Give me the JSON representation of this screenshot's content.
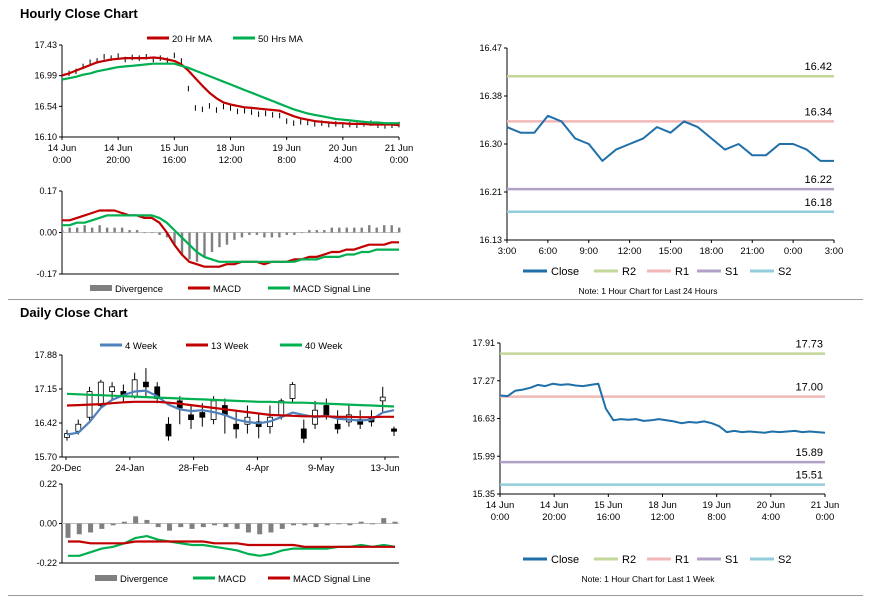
{
  "colors": {
    "red": "#c00000",
    "green": "#00b050",
    "blue": "#4f81bd",
    "close": "#1f6fa8",
    "r2": "#c4d79b",
    "r1": "#f2b8b8",
    "s1": "#b1a0c7",
    "s2": "#92cddc",
    "divergence": "#808080",
    "candle": "#000000",
    "grid": "#d0d0d0"
  },
  "sections": {
    "hourly": "Hourly Close Chart",
    "daily": "Daily Close Chart"
  },
  "chart_data": [
    {
      "id": "hourly-price",
      "type": "line",
      "title": "Hourly Close Chart",
      "legend": [
        "20 Hr MA",
        "50 Hrs MA"
      ],
      "yticks": [
        "17.43",
        "16.99",
        "16.54",
        "16.10"
      ],
      "ylim": [
        16.1,
        17.43
      ],
      "xticks": [
        [
          "14 Jun",
          "0:00"
        ],
        [
          "14 Jun",
          "20:00"
        ],
        [
          "15 Jun",
          "16:00"
        ],
        [
          "18 Jun",
          "12:00"
        ],
        [
          "19 Jun",
          "8:00"
        ],
        [
          "20 Jun",
          "4:00"
        ],
        [
          "21 Jun",
          "0:00"
        ]
      ],
      "close": [
        16.98,
        17.02,
        17.05,
        17.12,
        17.18,
        17.2,
        17.26,
        17.24,
        17.27,
        17.22,
        17.25,
        17.24,
        17.26,
        17.22,
        17.24,
        17.21,
        17.28,
        17.2,
        16.8,
        16.52,
        16.5,
        16.55,
        16.49,
        16.54,
        16.52,
        16.47,
        16.48,
        16.46,
        16.43,
        16.44,
        16.42,
        16.41,
        16.33,
        16.3,
        16.32,
        16.31,
        16.29,
        16.3,
        16.28,
        16.29,
        16.27,
        16.28,
        16.27,
        16.29,
        16.3,
        16.27,
        16.26,
        16.27,
        16.28
      ],
      "series": [
        {
          "name": "20 Hr MA",
          "color": "red",
          "values": [
            16.99,
            17.02,
            17.06,
            17.1,
            17.14,
            17.18,
            17.2,
            17.22,
            17.23,
            17.24,
            17.24,
            17.24,
            17.24,
            17.25,
            17.24,
            17.22,
            17.2,
            17.15,
            17.06,
            16.95,
            16.84,
            16.74,
            16.66,
            16.6,
            16.57,
            16.55,
            16.53,
            16.52,
            16.51,
            16.5,
            16.49,
            16.48,
            16.44,
            16.4,
            16.37,
            16.35,
            16.33,
            16.32,
            16.31,
            16.3,
            16.3,
            16.29,
            16.29,
            16.29,
            16.28,
            16.28,
            16.28,
            16.28,
            16.27
          ]
        },
        {
          "name": "50 Hrs MA",
          "color": "green",
          "values": [
            16.93,
            16.95,
            16.97,
            17.0,
            17.02,
            17.05,
            17.07,
            17.09,
            17.11,
            17.12,
            17.13,
            17.14,
            17.15,
            17.16,
            17.16,
            17.16,
            17.16,
            17.13,
            17.1,
            17.06,
            17.02,
            16.98,
            16.94,
            16.9,
            16.86,
            16.82,
            16.78,
            16.74,
            16.7,
            16.66,
            16.62,
            16.58,
            16.54,
            16.5,
            16.47,
            16.44,
            16.42,
            16.4,
            16.38,
            16.36,
            16.35,
            16.34,
            16.33,
            16.32,
            16.31,
            16.31,
            16.3,
            16.3,
            16.3
          ]
        }
      ]
    },
    {
      "id": "hourly-macd",
      "type": "line",
      "legend": [
        "Divergence",
        "MACD",
        "MACD Signal Line"
      ],
      "yticks": [
        "0.17",
        "0.00",
        "-0.17"
      ],
      "ylim": [
        -0.17,
        0.17
      ],
      "divergence": [
        0.01,
        0.02,
        0.02,
        0.03,
        0.02,
        0.03,
        0.02,
        0.02,
        0.02,
        0.01,
        0.01,
        0.0,
        0.0,
        -0.01,
        -0.02,
        -0.05,
        -0.09,
        -0.11,
        -0.12,
        -0.1,
        -0.08,
        -0.06,
        -0.05,
        -0.03,
        -0.02,
        -0.01,
        -0.01,
        -0.02,
        -0.02,
        -0.02,
        -0.01,
        -0.01,
        0.0,
        0.01,
        0.01,
        0.01,
        0.02,
        0.02,
        0.02,
        0.02,
        0.02,
        0.03,
        0.02,
        0.03,
        0.03,
        0.02
      ],
      "series": [
        {
          "name": "MACD",
          "color": "red",
          "values": [
            0.05,
            0.05,
            0.06,
            0.07,
            0.08,
            0.09,
            0.09,
            0.09,
            0.08,
            0.07,
            0.07,
            0.06,
            0.06,
            0.04,
            0.0,
            -0.05,
            -0.09,
            -0.12,
            -0.13,
            -0.14,
            -0.14,
            -0.14,
            -0.13,
            -0.13,
            -0.12,
            -0.12,
            -0.12,
            -0.13,
            -0.12,
            -0.12,
            -0.12,
            -0.11,
            -0.11,
            -0.1,
            -0.1,
            -0.09,
            -0.08,
            -0.08,
            -0.07,
            -0.07,
            -0.06,
            -0.05,
            -0.05,
            -0.05,
            -0.04,
            -0.04
          ]
        },
        {
          "name": "MACD Signal Line",
          "color": "green",
          "values": [
            0.03,
            0.03,
            0.04,
            0.04,
            0.05,
            0.06,
            0.07,
            0.07,
            0.07,
            0.07,
            0.07,
            0.07,
            0.07,
            0.06,
            0.04,
            0.01,
            -0.02,
            -0.05,
            -0.08,
            -0.1,
            -0.11,
            -0.12,
            -0.12,
            -0.12,
            -0.12,
            -0.12,
            -0.12,
            -0.12,
            -0.12,
            -0.12,
            -0.12,
            -0.12,
            -0.11,
            -0.11,
            -0.11,
            -0.1,
            -0.1,
            -0.1,
            -0.09,
            -0.09,
            -0.08,
            -0.08,
            -0.07,
            -0.07,
            -0.07,
            -0.07
          ]
        }
      ]
    },
    {
      "id": "hourly-pivots",
      "type": "line",
      "ylim": [
        16.13,
        16.47
      ],
      "yticks": [
        "16.47",
        "16.38",
        "16.30",
        "16.21",
        "16.13"
      ],
      "xticks": [
        "3:00",
        "6:00",
        "9:00",
        "12:00",
        "15:00",
        "18:00",
        "21:00",
        "0:00",
        "3:00"
      ],
      "close": [
        16.33,
        16.32,
        16.32,
        16.35,
        16.34,
        16.31,
        16.3,
        16.27,
        16.29,
        16.3,
        16.31,
        16.33,
        16.32,
        16.34,
        16.33,
        16.31,
        16.29,
        16.3,
        16.28,
        16.28,
        16.3,
        16.3,
        16.29,
        16.27,
        16.27
      ],
      "levels": [
        {
          "name": "R2",
          "value": 16.42,
          "label": "16.42"
        },
        {
          "name": "R1",
          "value": 16.34,
          "label": "16.34"
        },
        {
          "name": "S1",
          "value": 16.22,
          "label": "16.22"
        },
        {
          "name": "S2",
          "value": 16.18,
          "label": "16.18"
        }
      ],
      "legend": [
        "Close",
        "R2",
        "R1",
        "S1",
        "S2"
      ],
      "note": "Note: 1 Hour Chart for Last 24 Hours"
    },
    {
      "id": "daily-price",
      "type": "line",
      "title": "Daily Close Chart",
      "legend": [
        "4 Week",
        "13 Week",
        "40 Week"
      ],
      "yticks": [
        "17.88",
        "17.15",
        "16.42",
        "15.70"
      ],
      "ylim": [
        15.7,
        17.88
      ],
      "xticks": [
        "20-Dec",
        "24-Jan",
        "28-Feb",
        "4-Apr",
        "9-May",
        "13-Jun"
      ],
      "candles": [
        [
          16.12,
          16.2,
          16.05,
          16.28
        ],
        [
          16.25,
          16.4,
          16.18,
          16.5
        ],
        [
          16.55,
          17.1,
          16.48,
          17.2
        ],
        [
          16.8,
          17.3,
          16.75,
          17.35
        ],
        [
          17.1,
          17.2,
          16.9,
          17.3
        ],
        [
          17.1,
          17.0,
          16.85,
          17.25
        ],
        [
          17.0,
          17.35,
          16.95,
          17.5
        ],
        [
          17.3,
          17.2,
          17.0,
          17.6
        ],
        [
          17.2,
          16.95,
          16.85,
          17.3
        ],
        [
          16.4,
          16.15,
          16.05,
          16.55
        ],
        [
          16.9,
          16.75,
          16.4,
          17.0
        ],
        [
          16.6,
          16.5,
          16.3,
          16.8
        ],
        [
          16.65,
          16.55,
          16.35,
          16.85
        ],
        [
          16.5,
          16.9,
          16.4,
          17.0
        ],
        [
          16.8,
          16.6,
          16.2,
          16.95
        ],
        [
          16.4,
          16.3,
          16.1,
          16.7
        ],
        [
          16.4,
          16.55,
          16.2,
          16.8
        ],
        [
          16.45,
          16.35,
          16.1,
          16.65
        ],
        [
          16.35,
          16.55,
          16.2,
          16.8
        ],
        [
          16.6,
          16.9,
          16.5,
          16.95
        ],
        [
          16.95,
          17.25,
          16.85,
          17.3
        ],
        [
          16.3,
          16.1,
          16.0,
          16.5
        ],
        [
          16.4,
          16.7,
          16.3,
          16.9
        ],
        [
          16.8,
          16.6,
          16.5,
          16.95
        ],
        [
          16.4,
          16.3,
          16.2,
          16.7
        ],
        [
          16.45,
          16.6,
          16.35,
          16.8
        ],
        [
          16.5,
          16.4,
          16.3,
          16.7
        ],
        [
          16.55,
          16.45,
          16.35,
          16.7
        ],
        [
          16.9,
          16.98,
          16.65,
          17.2
        ],
        [
          16.3,
          16.25,
          16.15,
          16.35
        ]
      ],
      "series": [
        {
          "name": "4 Week",
          "color": "blue",
          "values": [
            16.18,
            16.22,
            16.45,
            16.75,
            16.92,
            17.02,
            17.1,
            17.12,
            17.0,
            16.82,
            16.72,
            16.68,
            16.7,
            16.66,
            16.6,
            16.5,
            16.45,
            16.42,
            16.46,
            16.55,
            16.65,
            16.6,
            16.55,
            16.58,
            16.52,
            16.5,
            16.48,
            16.5,
            16.65,
            16.7
          ]
        },
        {
          "name": "13 Week",
          "color": "red",
          "values": [
            16.8,
            16.81,
            16.82,
            16.83,
            16.85,
            16.87,
            16.88,
            16.88,
            16.88,
            16.86,
            16.84,
            16.81,
            16.78,
            16.75,
            16.72,
            16.69,
            16.66,
            16.63,
            16.6,
            16.59,
            16.58,
            16.57,
            16.57,
            16.57,
            16.56,
            16.56,
            16.55,
            16.55,
            16.56,
            16.56
          ]
        },
        {
          "name": "40 Week",
          "color": "green",
          "values": [
            17.05,
            17.04,
            17.03,
            17.02,
            17.01,
            17.0,
            16.99,
            16.98,
            16.97,
            16.96,
            16.95,
            16.94,
            16.93,
            16.92,
            16.91,
            16.9,
            16.89,
            16.88,
            16.88,
            16.87,
            16.86,
            16.86,
            16.85,
            16.84,
            16.83,
            16.82,
            16.81,
            16.8,
            16.79,
            16.78
          ]
        }
      ]
    },
    {
      "id": "daily-macd",
      "type": "line",
      "legend": [
        "Divergence",
        "MACD",
        "MACD Signal Line"
      ],
      "yticks": [
        "0.22",
        "0.00",
        "-0.22"
      ],
      "ylim": [
        -0.22,
        0.22
      ],
      "divergence": [
        -0.08,
        -0.06,
        -0.05,
        -0.03,
        -0.01,
        0.01,
        0.04,
        0.02,
        -0.02,
        -0.04,
        -0.02,
        -0.03,
        -0.02,
        -0.01,
        -0.02,
        -0.03,
        -0.05,
        -0.06,
        -0.05,
        -0.03,
        -0.01,
        -0.01,
        -0.02,
        -0.01,
        0.0,
        -0.01,
        0.01,
        0.0,
        0.03,
        0.01
      ],
      "series": [
        {
          "name": "MACD",
          "color": "green",
          "values": [
            -0.18,
            -0.18,
            -0.16,
            -0.14,
            -0.13,
            -0.11,
            -0.08,
            -0.07,
            -0.09,
            -0.1,
            -0.11,
            -0.12,
            -0.12,
            -0.13,
            -0.14,
            -0.15,
            -0.17,
            -0.18,
            -0.17,
            -0.15,
            -0.14,
            -0.14,
            -0.14,
            -0.14,
            -0.13,
            -0.13,
            -0.12,
            -0.13,
            -0.12,
            -0.13
          ]
        },
        {
          "name": "MACD Signal Line",
          "color": "red",
          "values": [
            -0.1,
            -0.1,
            -0.11,
            -0.11,
            -0.11,
            -0.11,
            -0.1,
            -0.1,
            -0.1,
            -0.1,
            -0.1,
            -0.1,
            -0.1,
            -0.11,
            -0.11,
            -0.11,
            -0.12,
            -0.12,
            -0.12,
            -0.12,
            -0.12,
            -0.13,
            -0.13,
            -0.13,
            -0.13,
            -0.13,
            -0.13,
            -0.13,
            -0.13,
            -0.13
          ]
        }
      ]
    },
    {
      "id": "daily-pivots",
      "type": "line",
      "ylim": [
        15.35,
        17.91
      ],
      "yticks": [
        "17.91",
        "17.27",
        "16.63",
        "15.99",
        "15.35"
      ],
      "xticks": [
        [
          "14 Jun",
          "0:00"
        ],
        [
          "14 Jun",
          "20:00"
        ],
        [
          "15 Jun",
          "16:00"
        ],
        [
          "18 Jun",
          "12:00"
        ],
        [
          "19 Jun",
          "8:00"
        ],
        [
          "20 Jun",
          "4:00"
        ],
        [
          "21 Jun",
          "0:00"
        ]
      ],
      "close": [
        17.02,
        17.01,
        17.1,
        17.12,
        17.15,
        17.2,
        17.18,
        17.22,
        17.2,
        17.21,
        17.19,
        17.18,
        17.2,
        17.22,
        16.8,
        16.6,
        16.62,
        16.61,
        16.62,
        16.59,
        16.6,
        16.62,
        16.6,
        16.58,
        16.55,
        16.57,
        16.56,
        16.58,
        16.55,
        16.5,
        16.4,
        16.42,
        16.4,
        16.41,
        16.4,
        16.39,
        16.41,
        16.4,
        16.41,
        16.42,
        16.4,
        16.41,
        16.4,
        16.39
      ],
      "levels": [
        {
          "name": "R2",
          "value": 17.73,
          "label": "17.73"
        },
        {
          "name": "R1",
          "value": 17.0,
          "label": "17.00"
        },
        {
          "name": "S1",
          "value": 15.89,
          "label": "15.89"
        },
        {
          "name": "S2",
          "value": 15.51,
          "label": "15.51"
        }
      ],
      "legend": [
        "Close",
        "R2",
        "R1",
        "S1",
        "S2"
      ],
      "note": "Note: 1 Hour Chart for Last 1 Week"
    }
  ]
}
